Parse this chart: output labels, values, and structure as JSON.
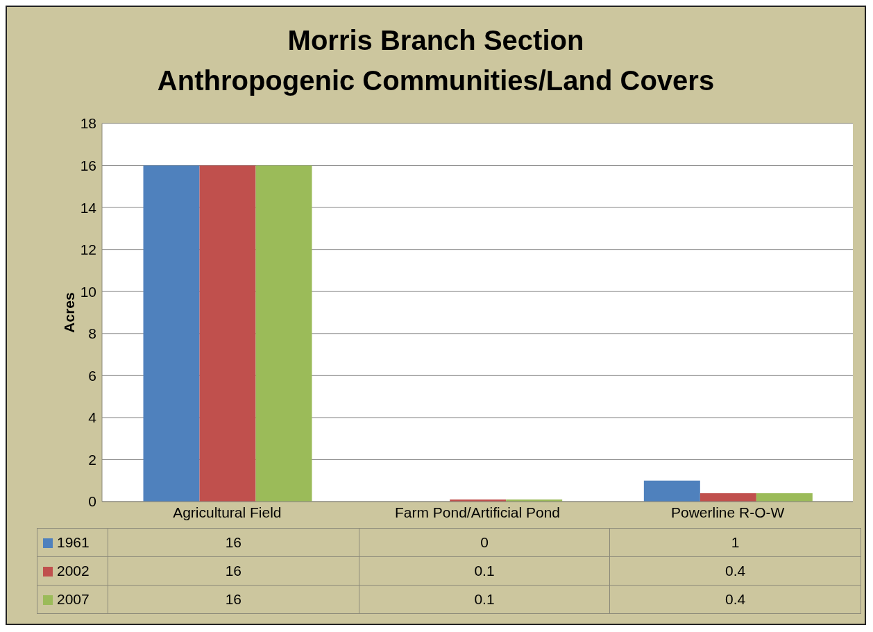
{
  "chart_data": {
    "type": "bar",
    "title": "Morris Branch Section\nAnthropogenic Communities/Land Covers",
    "ylabel": "Acres",
    "categories": [
      "Agricultural Field",
      "Farm Pond/Artificial Pond",
      "Powerline R-O-W"
    ],
    "series": [
      {
        "name": "1961",
        "color": "#4f81bd",
        "values": [
          16,
          0,
          1
        ]
      },
      {
        "name": "2002",
        "color": "#c0504d",
        "values": [
          16,
          0.1,
          0.4
        ]
      },
      {
        "name": "2007",
        "color": "#9bbb59",
        "values": [
          16,
          0.1,
          0.4
        ]
      }
    ],
    "ylim": [
      0,
      18
    ],
    "yticks": [
      0,
      2,
      4,
      6,
      8,
      10,
      12,
      14,
      16,
      18
    ],
    "grid": "y",
    "legend": "bottom",
    "data_labels": true
  }
}
